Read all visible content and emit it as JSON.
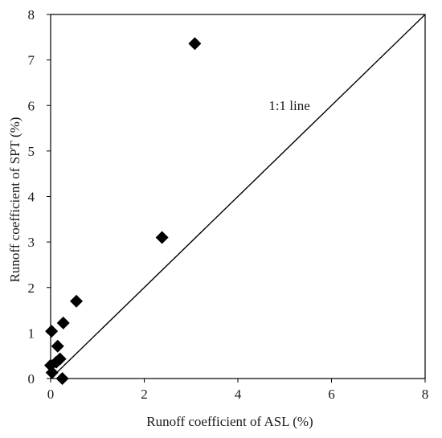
{
  "chart_data": {
    "type": "scatter",
    "title": "",
    "xlabel": "Runoff coefficient of ASL (%)",
    "ylabel": "Runoff coefficient of SPT (%)",
    "xlim": [
      0,
      8
    ],
    "ylim": [
      0,
      8
    ],
    "xticks": [
      "0",
      "2",
      "4",
      "6",
      "8"
    ],
    "yticks": [
      "0",
      "1",
      "2",
      "3",
      "4",
      "5",
      "6",
      "7",
      "8"
    ],
    "grid": false,
    "legend": "none",
    "marker": "diamond",
    "marker_color": "#000000",
    "series": [
      {
        "points": [
          {
            "x": 3.08,
            "y": 7.36
          },
          {
            "x": 2.38,
            "y": 3.1
          },
          {
            "x": 0.55,
            "y": 1.7
          },
          {
            "x": 0.27,
            "y": 1.22
          },
          {
            "x": 0.02,
            "y": 1.04
          },
          {
            "x": 0.15,
            "y": 0.71
          },
          {
            "x": 0.2,
            "y": 0.43
          },
          {
            "x": 0.12,
            "y": 0.36
          },
          {
            "x": 0.0,
            "y": 0.29
          },
          {
            "x": 0.03,
            "y": 0.13
          },
          {
            "x": 0.25,
            "y": 0.0
          }
        ]
      }
    ],
    "reference_line": {
      "x": [
        0,
        8
      ],
      "y": [
        0,
        8
      ],
      "label": "1:1 line",
      "label_at": {
        "x": 5.1,
        "y": 5.9
      }
    }
  }
}
